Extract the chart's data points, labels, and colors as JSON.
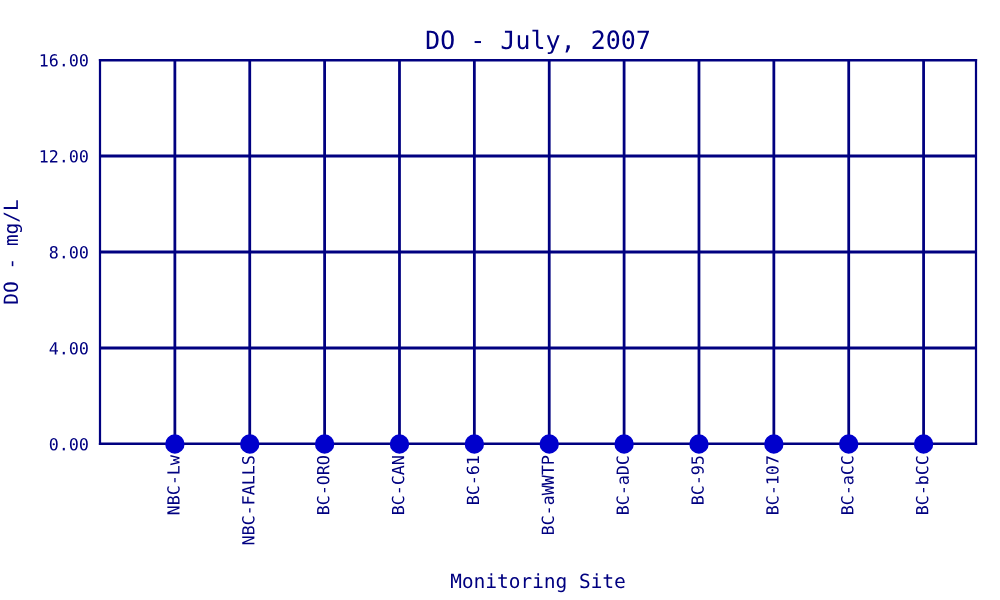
{
  "chart_data": {
    "type": "scatter",
    "title": "DO - July, 2007",
    "xlabel": "Monitoring Site",
    "ylabel": "DO - mg/L",
    "categories": [
      "NBC-Lw",
      "NBC-FALLS",
      "BC-ORO",
      "BC-CAN",
      "BC-61",
      "BC-aWWTP",
      "BC-aDC",
      "BC-95",
      "BC-107",
      "BC-aCC",
      "BC-bCC"
    ],
    "series": [
      {
        "color": "#0000cc",
        "values": [
          0,
          0,
          0,
          0,
          0,
          0,
          0,
          0,
          0,
          0,
          0
        ]
      }
    ],
    "ylim": [
      0,
      16
    ],
    "yticks": [
      {
        "value": 0,
        "label": "0.00"
      },
      {
        "value": 4,
        "label": "4.00"
      },
      {
        "value": 8,
        "label": "8.00"
      },
      {
        "value": 12,
        "label": "12.00"
      },
      {
        "value": 16,
        "label": "16.00"
      }
    ],
    "grid": true,
    "marker": "circle"
  }
}
